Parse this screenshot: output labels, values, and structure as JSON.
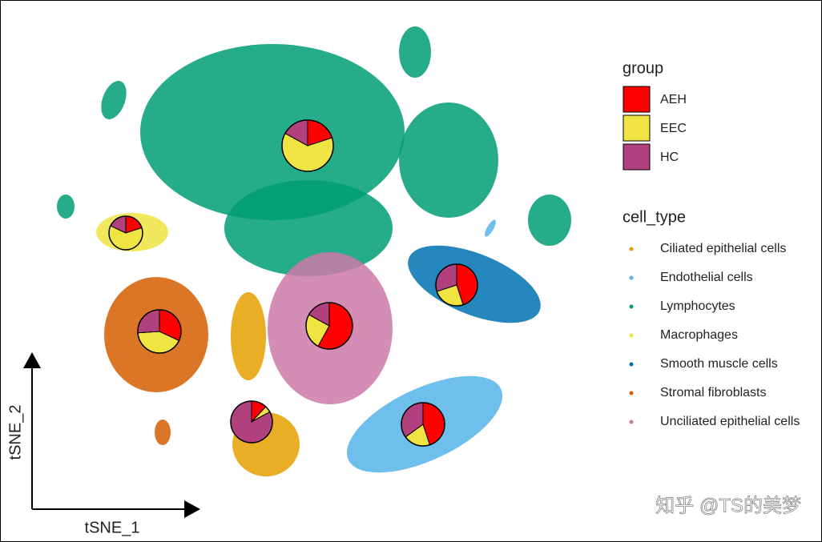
{
  "chart_data": {
    "type": "scatter-pie",
    "xlabel": "tSNE_1",
    "ylabel": "tSNE_2",
    "group_title": "group",
    "groups": [
      {
        "name": "AEH",
        "color": "#ff0000"
      },
      {
        "name": "EEC",
        "color": "#f0e442"
      },
      {
        "name": "HC",
        "color": "#b0407e"
      }
    ],
    "cell_type_title": "cell_type",
    "cell_types": [
      {
        "name": "Ciliated epithelial cells",
        "color": "#e6a000",
        "values": [
          12,
          5,
          83
        ]
      },
      {
        "name": "Endothelial cells",
        "color": "#56b4e9",
        "values": [
          45,
          20,
          35
        ]
      },
      {
        "name": "Lymphocytes",
        "color": "#009e73",
        "values": [
          20,
          63,
          17
        ]
      },
      {
        "name": "Macrophages",
        "color": "#f0e442",
        "values": [
          20,
          62,
          18
        ]
      },
      {
        "name": "Smooth muscle cells",
        "color": "#0072b2",
        "values": [
          45,
          25,
          30
        ]
      },
      {
        "name": "Stromal fibroblasts",
        "color": "#d55e00",
        "values": [
          32,
          42,
          26
        ]
      },
      {
        "name": "Unciliated epithelial cells",
        "color": "#cc79a7",
        "values": [
          58,
          25,
          17
        ]
      }
    ],
    "watermark": "知乎 @TS的美梦"
  }
}
